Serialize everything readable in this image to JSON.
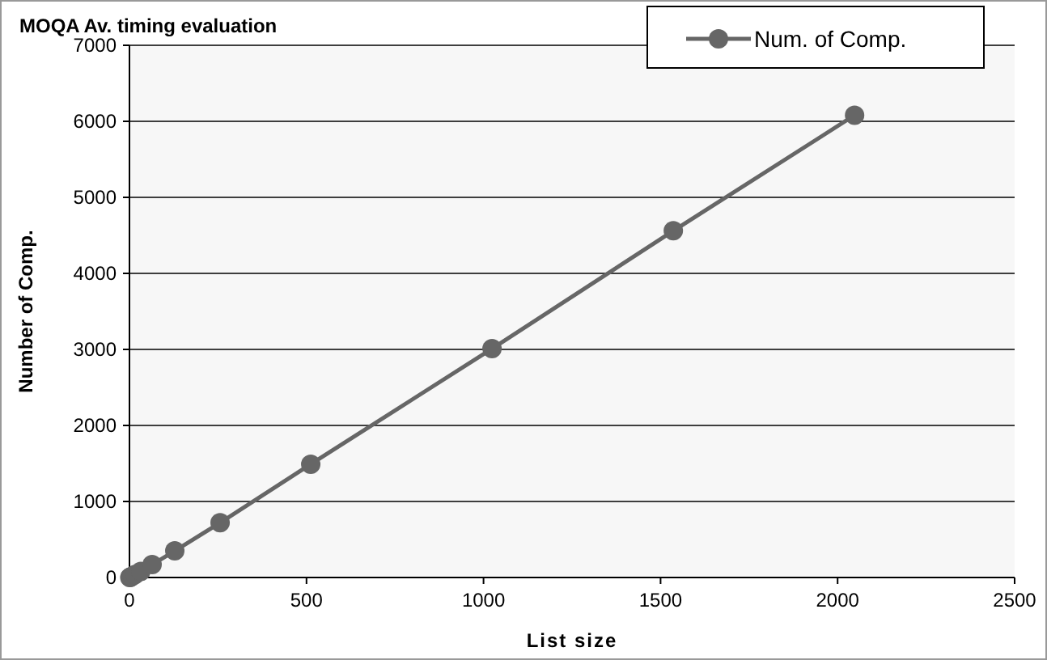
{
  "chart_data": {
    "type": "line",
    "title": "MOQA Av. timing evaluation",
    "xlabel": "List size",
    "ylabel": "Number of Comp.",
    "x": [
      1,
      2,
      4,
      8,
      16,
      32,
      64,
      128,
      256,
      512,
      1024,
      1536,
      2048
    ],
    "series": [
      {
        "name": "Num. of Comp.",
        "color": "#666666",
        "values": [
          0,
          2,
          7,
          18,
          40,
          80,
          170,
          350,
          720,
          1490,
          3010,
          4560,
          6080
        ]
      }
    ],
    "xlim": [
      0,
      2500
    ],
    "xticks": [
      0,
      500,
      1000,
      1500,
      2000,
      2500
    ],
    "ylim": [
      0,
      7000
    ],
    "yticks": [
      0,
      1000,
      2000,
      3000,
      4000,
      5000,
      6000,
      7000
    ],
    "grid": "y",
    "legend": "top right",
    "marker": "circle",
    "line_style": "solid"
  }
}
